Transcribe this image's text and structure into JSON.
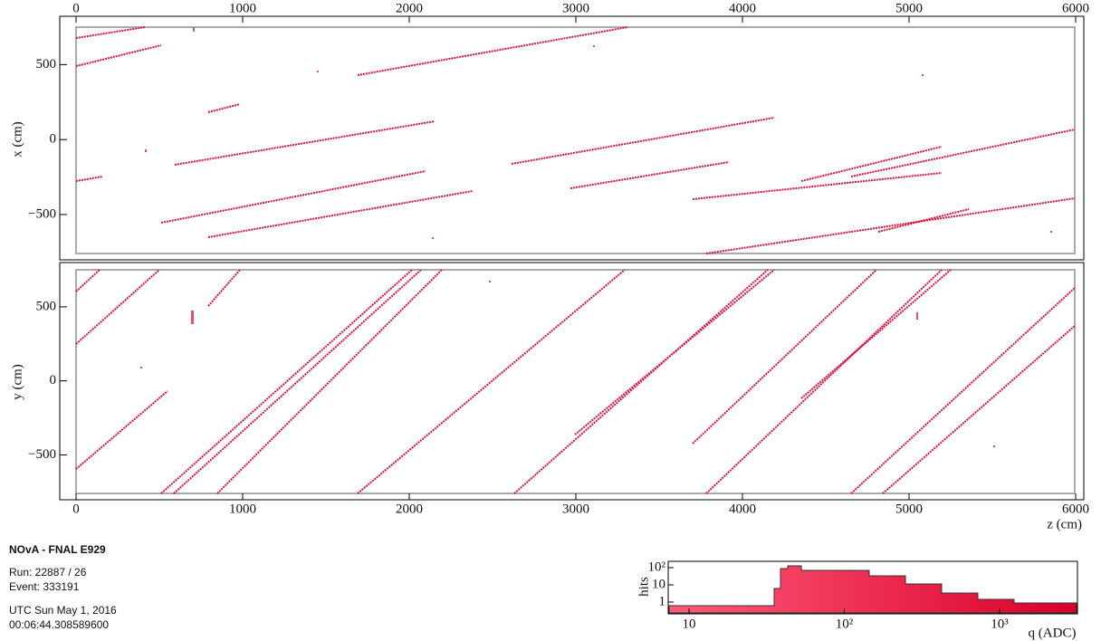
{
  "top_view": {
    "y_label": "x (cm)",
    "xlim": [
      0,
      6000
    ],
    "xticks": [
      0,
      1000,
      2000,
      3000,
      4000,
      5000,
      6000
    ],
    "ylim": [
      -760,
      750
    ],
    "yticks": [
      500,
      0,
      {
        "value": -500,
        "label": "−500"
      }
    ]
  },
  "side_view": {
    "y_label": "y (cm)",
    "x_label": "z (cm)",
    "xlim": [
      0,
      6000
    ],
    "xticks": [
      0,
      1000,
      2000,
      3000,
      4000,
      5000,
      6000
    ],
    "ylim": [
      -760,
      750
    ],
    "yticks": [
      500,
      0,
      {
        "value": -500,
        "label": "−500"
      }
    ]
  },
  "info": {
    "title": "NOvA - FNAL E929",
    "run": "Run:   22887 / 26",
    "event": "Event: 333191",
    "date": "UTC Sun May 1, 2016",
    "time": "00:06:44.308589600"
  },
  "histogram": {
    "y_label": "hits",
    "x_label": "q (ADC)",
    "xticks": [
      10,
      {
        "value": 100,
        "label": "10²"
      },
      {
        "value": 1000,
        "label": "10³"
      }
    ],
    "yticks": [
      {
        "value": 100,
        "label": "10²"
      },
      10,
      1
    ]
  }
}
